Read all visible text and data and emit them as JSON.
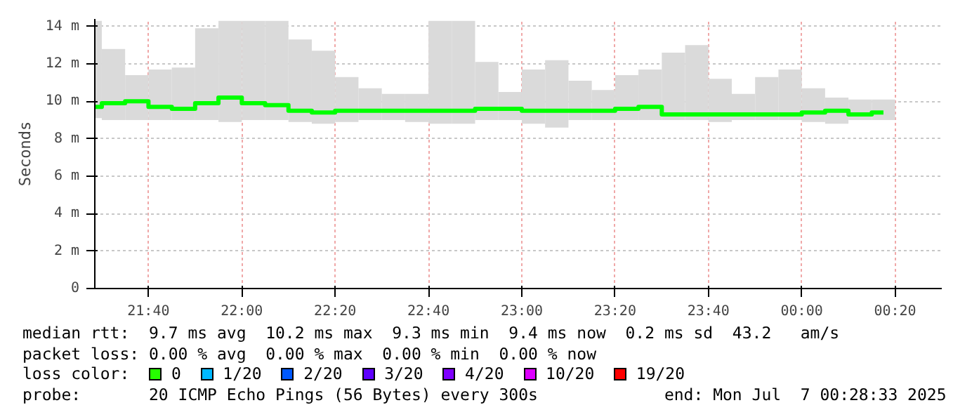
{
  "chart_data": {
    "type": "bar",
    "ylabel": "Seconds",
    "x": [
      "2025-07-06T21:29:15",
      "2025-07-06T21:32:30",
      "2025-07-06T21:37:30",
      "2025-07-06T21:42:30",
      "2025-07-06T21:47:30",
      "2025-07-06T21:52:30",
      "2025-07-06T21:57:30",
      "2025-07-06T22:02:30",
      "2025-07-06T22:07:30",
      "2025-07-06T22:12:30",
      "2025-07-06T22:17:30",
      "2025-07-06T22:22:30",
      "2025-07-06T22:27:30",
      "2025-07-06T22:32:30",
      "2025-07-06T22:37:30",
      "2025-07-06T22:42:30",
      "2025-07-06T22:47:30",
      "2025-07-06T22:52:30",
      "2025-07-06T22:57:30",
      "2025-07-06T23:02:30",
      "2025-07-06T23:07:30",
      "2025-07-06T23:12:30",
      "2025-07-06T23:17:30",
      "2025-07-06T23:22:30",
      "2025-07-06T23:27:30",
      "2025-07-06T23:32:30",
      "2025-07-06T23:37:30",
      "2025-07-06T23:42:30",
      "2025-07-06T23:47:30",
      "2025-07-06T23:52:30",
      "2025-07-06T23:57:30",
      "2025-07-07T00:02:30",
      "2025-07-07T00:07:30",
      "2025-07-07T00:12:30",
      "2025-07-07T00:17:30"
    ],
    "series": [
      {
        "color": "#dadada",
        "base": [
          9.1,
          9.0,
          9.0,
          9.0,
          9.0,
          9.0,
          8.9,
          9.0,
          9.0,
          8.9,
          8.8,
          8.9,
          9.0,
          9.0,
          8.9,
          8.8,
          8.8,
          9.0,
          9.0,
          8.8,
          8.6,
          9.0,
          9.0,
          9.0,
          9.0,
          9.0,
          9.0,
          8.9,
          9.0,
          9.0,
          9.0,
          8.9,
          8.8,
          9.0,
          9.0
        ],
        "values": [
          5.2,
          3.8,
          2.4,
          2.7,
          2.8,
          4.9,
          5.4,
          5.3,
          5.3,
          4.4,
          3.9,
          2.4,
          1.7,
          1.4,
          1.5,
          5.5,
          5.5,
          3.1,
          1.5,
          2.9,
          3.6,
          2.1,
          1.6,
          2.4,
          2.7,
          3.6,
          4.0,
          2.3,
          1.4,
          2.3,
          2.7,
          1.8,
          1.4,
          1.1,
          1.1
        ]
      },
      {
        "type": "step",
        "color": "#00ff00",
        "values": [
          9.7,
          9.9,
          10.0,
          9.7,
          9.6,
          9.9,
          10.2,
          9.9,
          9.8,
          9.5,
          9.4,
          9.5,
          9.5,
          9.5,
          9.5,
          9.5,
          9.5,
          9.6,
          9.6,
          9.5,
          9.5,
          9.5,
          9.5,
          9.6,
          9.7,
          9.3,
          9.3,
          9.3,
          9.3,
          9.3,
          9.3,
          9.4,
          9.5,
          9.3,
          9.4
        ]
      }
    ],
    "xlim": [
      "2025-07-06T21:28:30",
      "2025-07-07T00:30"
    ],
    "xticks": [
      {
        "value": "2025-07-06T21:40",
        "label": "21:40"
      },
      {
        "value": "2025-07-06T22:00",
        "label": "22:00"
      },
      {
        "value": "2025-07-06T22:20",
        "label": "22:20"
      },
      {
        "value": "2025-07-06T22:40",
        "label": "22:40"
      },
      {
        "value": "2025-07-06T23:00",
        "label": "23:00"
      },
      {
        "value": "2025-07-06T23:20",
        "label": "23:20"
      },
      {
        "value": "2025-07-06T23:40",
        "label": "23:40"
      },
      {
        "value": "2025-07-07T00:00",
        "label": "00:00"
      },
      {
        "value": "2025-07-07T00:20",
        "label": "00:20"
      }
    ],
    "ylim": [
      0,
      14.4
    ],
    "yticks": [
      0,
      {
        "value": 2,
        "label": "2 m"
      },
      {
        "value": 4,
        "label": "4 m"
      },
      {
        "value": 6,
        "label": "6 m"
      },
      {
        "value": 8,
        "label": "8 m"
      },
      {
        "value": 10,
        "label": "10 m"
      },
      {
        "value": 12,
        "label": "12 m"
      },
      {
        "value": 14,
        "label": "14 m"
      }
    ],
    "grid": true,
    "annotations": [
      "median rtt:  9.7 ms avg  10.2 ms max  9.3 ms min  9.4 ms now  0.2 ms sd  43.2   am/s",
      "packet loss: 0.00 % avg  0.00 % max  0.00 % min  0.00 % now",
      "loss color:  0  1/20  2/20  3/20  4/20  10/20  19/20",
      "probe:       20 ICMP Echo Pings (56 Bytes) every 300s             end: Mon Jul  7 00:28:33 2025"
    ]
  }
}
